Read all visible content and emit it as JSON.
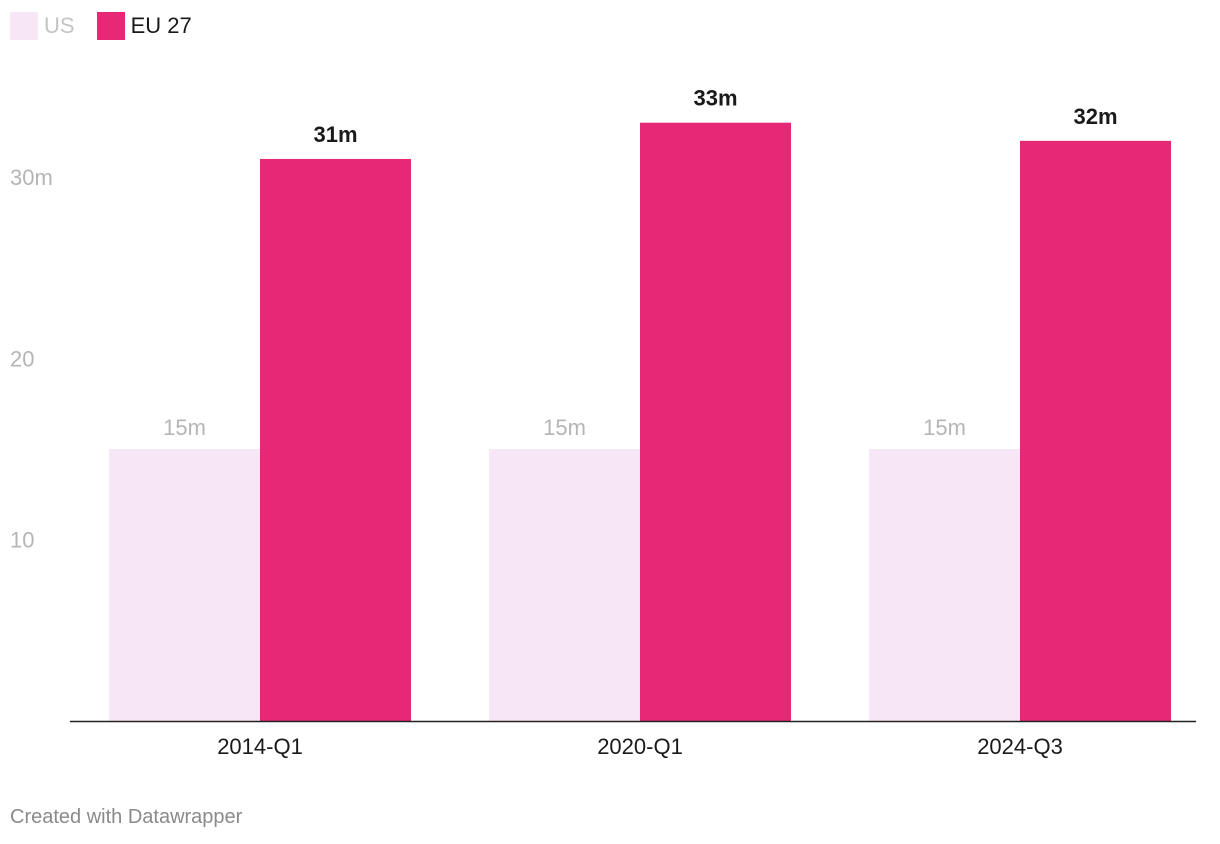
{
  "legend": {
    "items": [
      {
        "label": "US",
        "color": "#f7e6f5"
      },
      {
        "label": "EU 27",
        "color": "#e62876"
      }
    ]
  },
  "chart_data": {
    "type": "bar",
    "categories": [
      "2014-Q1",
      "2020-Q1",
      "2024-Q3"
    ],
    "series": [
      {
        "name": "US",
        "values": [
          15,
          15,
          15
        ],
        "labels": [
          "15m",
          "15m",
          "15m"
        ],
        "color": "#f7e6f5"
      },
      {
        "name": "EU 27",
        "values": [
          31,
          33,
          32
        ],
        "labels": [
          "31m",
          "33m",
          "32m"
        ],
        "color": "#e62876"
      }
    ],
    "y_ticks": [
      {
        "value": 10,
        "label": "10"
      },
      {
        "value": 20,
        "label": "20"
      },
      {
        "value": 30,
        "label": "30m"
      }
    ],
    "ylim": [
      0,
      33
    ],
    "title": "",
    "xlabel": "",
    "ylabel": "",
    "grid": false
  },
  "footer": {
    "credit": "Created with Datawrapper"
  }
}
